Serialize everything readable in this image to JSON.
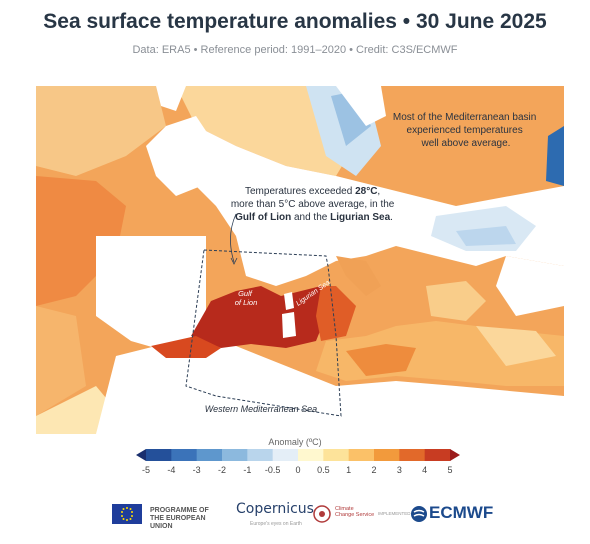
{
  "header": {
    "title": "Sea surface temperature anomalies • 30 June 2025",
    "subtitle": "Data: ERA5 • Reference period: 1991–2020 • Credit: C3S/ECMWF"
  },
  "map": {
    "annotation_med": [
      "Most of the Mediterranean basin",
      "experienced temperatures",
      "well above average."
    ],
    "annotation_gulf_parts": [
      "Temperatures exceeded ",
      "28°C",
      ",",
      "more than 5°C above average, in the",
      "Gulf of Lion",
      " and the ",
      "Ligurian Sea",
      "."
    ],
    "label_gulf": [
      "Gulf",
      "of Lion"
    ],
    "label_ligurian": "Ligurian Sea",
    "label_region": "Western Mediterranean Sea"
  },
  "legend": {
    "title": "Anomaly (ºC)",
    "ticks": [
      "-5",
      "-4",
      "-3",
      "-2",
      "-1",
      "-0.5",
      "0",
      "0.5",
      "1",
      "2",
      "3",
      "4",
      "5"
    ],
    "colors": [
      "#1a2f6e",
      "#24509a",
      "#3b73b9",
      "#5e97cd",
      "#8cb9de",
      "#b9d5ec",
      "#e4eef7",
      "#fff8cf",
      "#fde39a",
      "#fbc168",
      "#f29a3c",
      "#e2692a",
      "#c83c22",
      "#9b1b1b"
    ]
  },
  "footer": {
    "eu_text": [
      "PROGRAMME OF",
      "THE EUROPEAN UNION"
    ],
    "copernicus": "Copernicus",
    "copernicus_sub": "Europe's eyes on Earth",
    "c3s": [
      "Climate",
      "Change Service"
    ],
    "implemented": "IMPLEMENTED BY",
    "ecmwf": "ECMWF"
  }
}
